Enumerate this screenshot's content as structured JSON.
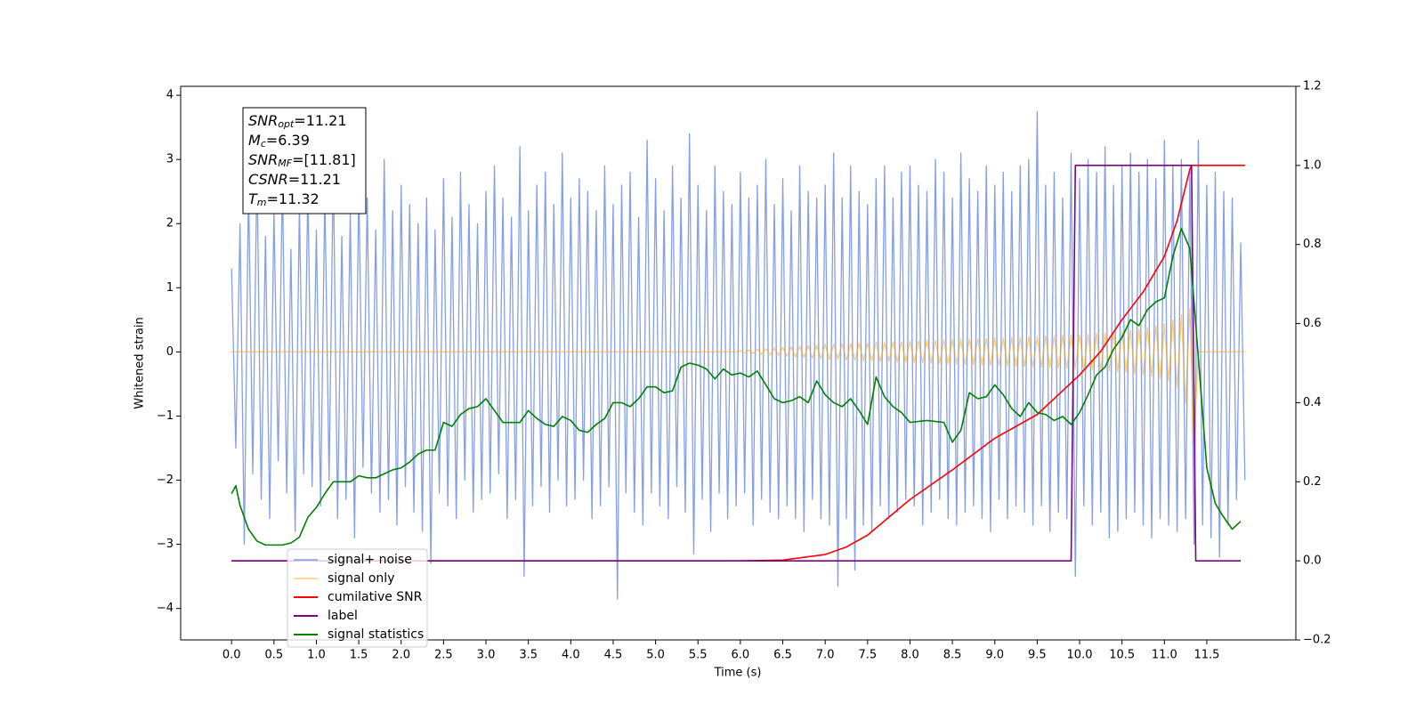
{
  "chart_data": {
    "type": "line",
    "ylabel": "Whitened strain",
    "xlabel": "Time (s)",
    "annotation": [
      {
        "italic": "SNR",
        "sub": "opt",
        "text": "=11.21"
      },
      {
        "italic": "M",
        "sub": "c",
        "text": "=6.39"
      },
      {
        "italic": "SNR",
        "sub": "MF",
        "text": "=[11.81]"
      },
      {
        "italic": "CSNR",
        "text": "=11.21"
      },
      {
        "italic": "T",
        "sub": "m",
        "text": "=11.32"
      }
    ],
    "xlim": [
      -0.6,
      12.55
    ],
    "ylim": [
      -4.49,
      4.14
    ],
    "y2lim": [
      -0.2,
      1.2
    ],
    "xticks": [
      {
        "value": 0,
        "label": "0.0"
      },
      0.5,
      {
        "value": 1,
        "label": "1.0"
      },
      1.5,
      {
        "value": 2,
        "label": "2.0"
      },
      2.5,
      {
        "value": 3,
        "label": "3.0"
      },
      3.5,
      {
        "value": 4,
        "label": "4.0"
      },
      4.5,
      {
        "value": 5,
        "label": "5.0"
      },
      5.5,
      {
        "value": 6,
        "label": "6.0"
      },
      6.5,
      {
        "value": 7,
        "label": "7.0"
      },
      7.5,
      {
        "value": 8,
        "label": "8.0"
      },
      8.5,
      {
        "value": 9,
        "label": "9.0"
      },
      9.5,
      {
        "value": 10,
        "label": "10.0"
      },
      10.5,
      {
        "value": 11,
        "label": "11.0"
      },
      11.5
    ],
    "yticks": [
      {
        "value": -4,
        "label": "−4"
      },
      {
        "value": -3,
        "label": "−3"
      },
      {
        "value": -2,
        "label": "−2"
      },
      {
        "value": -1,
        "label": "−1"
      },
      0,
      1,
      2,
      3,
      4
    ],
    "y2ticks": [
      {
        "value": -0.2,
        "label": "−0.2"
      },
      {
        "value": 0,
        "label": "0.0"
      },
      0.2,
      0.4,
      0.6,
      0.8,
      {
        "value": 1,
        "label": "1.0"
      },
      1.2
    ],
    "x": [
      0,
      0.05,
      0.1,
      0.15,
      0.2,
      0.25,
      0.3,
      0.35,
      0.4,
      0.45,
      0.5,
      0.55,
      0.6,
      0.65,
      0.7,
      0.75,
      0.8,
      0.85,
      0.9,
      0.95,
      1,
      1.05,
      1.1,
      1.15,
      1.2,
      1.25,
      1.3,
      1.35,
      1.4,
      1.45,
      1.5,
      1.55,
      1.6,
      1.65,
      1.7,
      1.75,
      1.8,
      1.85,
      1.9,
      1.95,
      2,
      2.05,
      2.1,
      2.15,
      2.2,
      2.25,
      2.3,
      2.35,
      2.4,
      2.45,
      2.5,
      2.55,
      2.6,
      2.65,
      2.7,
      2.75,
      2.8,
      2.85,
      2.9,
      2.95,
      3,
      3.05,
      3.1,
      3.15,
      3.2,
      3.25,
      3.3,
      3.35,
      3.4,
      3.45,
      3.5,
      3.55,
      3.6,
      3.65,
      3.7,
      3.75,
      3.8,
      3.85,
      3.9,
      3.95,
      4,
      4.05,
      4.1,
      4.15,
      4.2,
      4.25,
      4.3,
      4.35,
      4.4,
      4.45,
      4.5,
      4.55,
      4.6,
      4.65,
      4.7,
      4.75,
      4.8,
      4.85,
      4.9,
      4.95,
      5,
      5.05,
      5.1,
      5.15,
      5.2,
      5.25,
      5.3,
      5.35,
      5.4,
      5.45,
      5.5,
      5.55,
      5.6,
      5.65,
      5.7,
      5.75,
      5.8,
      5.85,
      5.9,
      5.95,
      6,
      6.05,
      6.1,
      6.15,
      6.2,
      6.25,
      6.3,
      6.35,
      6.4,
      6.45,
      6.5,
      6.55,
      6.6,
      6.65,
      6.7,
      6.75,
      6.8,
      6.85,
      6.9,
      6.95,
      7,
      7.05,
      7.1,
      7.15,
      7.2,
      7.25,
      7.3,
      7.35,
      7.4,
      7.45,
      7.5,
      7.55,
      7.6,
      7.65,
      7.7,
      7.75,
      7.8,
      7.85,
      7.9,
      7.95,
      8,
      8.05,
      8.1,
      8.15,
      8.2,
      8.25,
      8.3,
      8.35,
      8.4,
      8.45,
      8.5,
      8.55,
      8.6,
      8.65,
      8.7,
      8.75,
      8.8,
      8.85,
      8.9,
      8.95,
      9,
      9.05,
      9.1,
      9.15,
      9.2,
      9.25,
      9.3,
      9.35,
      9.4,
      9.45,
      9.5,
      9.55,
      9.6,
      9.65,
      9.7,
      9.75,
      9.8,
      9.85,
      9.9,
      9.95,
      10,
      10.05,
      10.1,
      10.15,
      10.2,
      10.25,
      10.3,
      10.35,
      10.4,
      10.45,
      10.5,
      10.55,
      10.6,
      10.65,
      10.7,
      10.75,
      10.8,
      10.85,
      10.9,
      10.95,
      11,
      11.05,
      11.1,
      11.15,
      11.2,
      11.25,
      11.3,
      11.35,
      11.4,
      11.45,
      11.5,
      11.55,
      11.6,
      11.65,
      11.7,
      11.75,
      11.8,
      11.85,
      11.9,
      11.95
    ],
    "series": [
      {
        "name": "signal+ noise",
        "color": "#7893e8",
        "values": [
          1.3,
          -1.5,
          2.0,
          -3.0,
          2.6,
          -1.9,
          2.9,
          -2.3,
          1.8,
          -2.6,
          2.2,
          -1.7,
          2.7,
          -2.2,
          1.6,
          -2.8,
          2.3,
          -1.9,
          2.6,
          -2.1,
          1.9,
          -2.4,
          2.5,
          -2.0,
          2.9,
          -2.6,
          1.8,
          -2.3,
          2.2,
          -2.9,
          2.6,
          -1.8,
          2.4,
          -2.2,
          1.9,
          -2.5,
          3.0,
          -2.3,
          2.2,
          -2.7,
          2.6,
          -2.1,
          2.3,
          -2.5,
          2.0,
          -2.8,
          2.4,
          -3.3,
          1.9,
          -2.2,
          2.7,
          -2.4,
          2.1,
          -2.6,
          2.8,
          -2.0,
          2.3,
          -2.5,
          2.0,
          -2.3,
          2.5,
          -2.2,
          2.9,
          -1.9,
          2.4,
          -2.6,
          2.1,
          -2.3,
          3.2,
          -3.5,
          2.2,
          -2.4,
          2.6,
          -2.1,
          2.8,
          -2.5,
          2.3,
          -2.0,
          3.1,
          -2.4,
          2.4,
          -2.3,
          2.7,
          -2.0,
          2.5,
          -2.6,
          2.2,
          -2.4,
          2.9,
          -2.1,
          2.3,
          -3.85,
          2.6,
          -2.2,
          2.8,
          -2.5,
          2.1,
          -2.7,
          3.3,
          -2.2,
          2.7,
          -2.4,
          2.2,
          -2.6,
          2.9,
          -2.1,
          2.4,
          -2.5,
          3.4,
          -3.15,
          2.6,
          -2.3,
          2.2,
          -2.8,
          2.9,
          -2.2,
          2.5,
          -2.6,
          2.3,
          -2.4,
          2.8,
          -2.2,
          2.4,
          -2.7,
          2.6,
          -2.3,
          3.0,
          -2.5,
          2.3,
          -2.6,
          2.7,
          -2.4,
          2.2,
          -2.6,
          2.9,
          -2.8,
          2.5,
          -2.3,
          2.4,
          -2.6,
          2.6,
          -2.7,
          3.1,
          -3.65,
          2.4,
          -2.6,
          2.9,
          -3.4,
          2.5,
          -2.7,
          2.3,
          -2.8,
          2.7,
          -2.4,
          2.9,
          -2.6,
          2.4,
          -2.5,
          2.8,
          -2.3,
          2.9,
          -2.4,
          2.6,
          -2.7,
          2.5,
          -2.5,
          3.0,
          -2.3,
          2.8,
          -2.6,
          2.4,
          -2.7,
          3.1,
          -2.5,
          2.7,
          -2.4,
          2.5,
          -2.6,
          2.9,
          -2.8,
          2.6,
          -2.3,
          2.8,
          -2.6,
          2.5,
          -2.4,
          2.9,
          -2.5,
          3.0,
          -2.7,
          3.75,
          -2.4,
          2.6,
          -2.8,
          2.8,
          -2.5,
          2.4,
          -2.6,
          3.1,
          -3.5,
          2.7,
          -2.4,
          3.0,
          -2.7,
          2.8,
          -2.5,
          3.2,
          -2.9,
          2.6,
          -2.8,
          2.9,
          -2.6,
          3.1,
          -2.5,
          2.8,
          -2.7,
          3.0,
          -2.9,
          2.7,
          -2.6,
          3.3,
          -2.7,
          2.9,
          -2.8,
          3.0,
          -2.6,
          2.8,
          -3.0,
          3.3,
          -2.7,
          2.6,
          -2.9,
          2.8,
          -3.2,
          2.5,
          -2.7,
          2.4,
          -2.3,
          1.7,
          -2.0
        ]
      },
      {
        "name": "signal only",
        "color": "#ffa500",
        "values": [
          0,
          0,
          0,
          0,
          0,
          0,
          0,
          0,
          0,
          0,
          0,
          0,
          0,
          0,
          0,
          0,
          0,
          0,
          0,
          0,
          0,
          0,
          0,
          0,
          0,
          0,
          0,
          0,
          0,
          0,
          0,
          0,
          0,
          0,
          0,
          0,
          0,
          0,
          0,
          0,
          0,
          0,
          0,
          0,
          0,
          0,
          0,
          0,
          0,
          0,
          0,
          0,
          0,
          0,
          0,
          0,
          0,
          0,
          0,
          0,
          0,
          0,
          0,
          0,
          0,
          0,
          0,
          0,
          0,
          0,
          0,
          0,
          0,
          0,
          0,
          0,
          0,
          0,
          0,
          0,
          0,
          0,
          0,
          0,
          0,
          0,
          0,
          0,
          0,
          0,
          0,
          0,
          0,
          0,
          0,
          0,
          0,
          0,
          0,
          0,
          0,
          0,
          0,
          0,
          0,
          0,
          0,
          0,
          0,
          0,
          0,
          0,
          0,
          0,
          0,
          0,
          0,
          0,
          0,
          0,
          0.02,
          -0.02,
          0.03,
          -0.03,
          0.04,
          -0.04,
          0.05,
          -0.05,
          0.06,
          -0.06,
          0.07,
          -0.07,
          0.08,
          -0.08,
          0.09,
          -0.09,
          0.1,
          -0.1,
          0.11,
          -0.11,
          0.12,
          -0.12,
          0.12,
          -0.12,
          0.13,
          -0.13,
          0.13,
          -0.13,
          0.14,
          -0.14,
          0.14,
          -0.14,
          0.15,
          -0.15,
          0.15,
          -0.15,
          0.16,
          -0.16,
          0.16,
          -0.16,
          0.17,
          -0.17,
          0.17,
          -0.17,
          0.18,
          -0.18,
          0.18,
          -0.18,
          0.19,
          -0.19,
          0.19,
          -0.19,
          0.2,
          -0.2,
          0.2,
          -0.2,
          0.21,
          -0.21,
          0.21,
          -0.21,
          0.22,
          -0.22,
          0.22,
          -0.22,
          0.23,
          -0.23,
          0.23,
          -0.23,
          0.24,
          -0.24,
          0.24,
          -0.24,
          0.25,
          -0.25,
          0.25,
          -0.25,
          0.26,
          -0.26,
          0.26,
          -0.26,
          0.27,
          -0.27,
          0.28,
          -0.28,
          0.29,
          -0.29,
          0.3,
          -0.3,
          0.31,
          -0.31,
          0.32,
          -0.32,
          0.34,
          -0.34,
          0.36,
          -0.36,
          0.38,
          -0.38,
          0.41,
          -0.41,
          0.44,
          -0.46,
          0.5,
          -0.55,
          0.58,
          -0.8,
          0.68,
          -1.4,
          0,
          0,
          0,
          0,
          0,
          0,
          0,
          0,
          0,
          0,
          0,
          0
        ]
      },
      {
        "name": "cumilative SNR",
        "color": "#ff0000",
        "axis": "y2",
        "x": [
          0,
          6,
          6.5,
          7,
          7.25,
          7.5,
          7.75,
          8,
          8.5,
          9,
          9.5,
          10,
          10.25,
          10.5,
          10.75,
          11,
          11.15,
          11.3,
          11.32,
          11.95
        ],
        "values": [
          0,
          0,
          0.002,
          0.016,
          0.035,
          0.065,
          0.11,
          0.155,
          0.23,
          0.31,
          0.37,
          0.47,
          0.53,
          0.61,
          0.68,
          0.77,
          0.86,
          0.99,
          1,
          1
        ]
      },
      {
        "name": "label",
        "color": "#800080",
        "axis": "y2",
        "x": [
          0,
          9.9,
          9.95,
          11.32,
          11.37,
          11.9
        ],
        "values": [
          0,
          0,
          1,
          1,
          0,
          0
        ]
      },
      {
        "name": "signal statistics",
        "color": "#008000",
        "axis": "y2",
        "x": [
          0,
          0.05,
          0.1,
          0.2,
          0.3,
          0.4,
          0.5,
          0.6,
          0.7,
          0.8,
          0.9,
          1,
          1.1,
          1.2,
          1.3,
          1.4,
          1.5,
          1.6,
          1.7,
          1.8,
          1.9,
          2,
          2.1,
          2.2,
          2.3,
          2.4,
          2.5,
          2.6,
          2.7,
          2.8,
          2.9,
          3,
          3.1,
          3.2,
          3.3,
          3.4,
          3.5,
          3.6,
          3.7,
          3.8,
          3.9,
          4,
          4.1,
          4.2,
          4.3,
          4.4,
          4.5,
          4.6,
          4.7,
          4.8,
          4.9,
          5,
          5.1,
          5.2,
          5.3,
          5.4,
          5.5,
          5.6,
          5.7,
          5.8,
          5.9,
          6,
          6.1,
          6.2,
          6.3,
          6.4,
          6.5,
          6.6,
          6.7,
          6.8,
          6.9,
          7,
          7.1,
          7.2,
          7.3,
          7.4,
          7.5,
          7.6,
          7.7,
          7.8,
          7.9,
          8,
          8.2,
          8.4,
          8.5,
          8.6,
          8.7,
          8.8,
          8.9,
          9,
          9.1,
          9.2,
          9.3,
          9.4,
          9.5,
          9.6,
          9.7,
          9.8,
          9.9,
          10,
          10.1,
          10.2,
          10.3,
          10.4,
          10.5,
          10.6,
          10.7,
          10.8,
          10.9,
          11,
          11.1,
          11.2,
          11.3,
          11.4,
          11.5,
          11.6,
          11.7,
          11.8,
          11.9
        ],
        "values": [
          0.17,
          0.19,
          0.14,
          0.08,
          0.05,
          0.04,
          0.04,
          0.04,
          0.045,
          0.06,
          0.11,
          0.135,
          0.17,
          0.2,
          0.2,
          0.2,
          0.215,
          0.21,
          0.21,
          0.22,
          0.23,
          0.235,
          0.25,
          0.27,
          0.28,
          0.28,
          0.35,
          0.34,
          0.37,
          0.385,
          0.39,
          0.41,
          0.38,
          0.35,
          0.35,
          0.35,
          0.38,
          0.36,
          0.345,
          0.34,
          0.365,
          0.355,
          0.33,
          0.325,
          0.345,
          0.36,
          0.4,
          0.4,
          0.39,
          0.41,
          0.44,
          0.44,
          0.425,
          0.43,
          0.49,
          0.5,
          0.495,
          0.485,
          0.46,
          0.485,
          0.47,
          0.475,
          0.465,
          0.48,
          0.445,
          0.41,
          0.4,
          0.405,
          0.415,
          0.4,
          0.455,
          0.42,
          0.4,
          0.39,
          0.41,
          0.38,
          0.345,
          0.465,
          0.415,
          0.39,
          0.375,
          0.35,
          0.355,
          0.35,
          0.3,
          0.33,
          0.425,
          0.41,
          0.415,
          0.445,
          0.42,
          0.385,
          0.365,
          0.4,
          0.375,
          0.37,
          0.355,
          0.365,
          0.345,
          0.375,
          0.42,
          0.47,
          0.49,
          0.535,
          0.565,
          0.61,
          0.595,
          0.635,
          0.655,
          0.665,
          0.77,
          0.84,
          0.79,
          0.515,
          0.235,
          0.145,
          0.11,
          0.08,
          0.1
        ]
      }
    ]
  }
}
